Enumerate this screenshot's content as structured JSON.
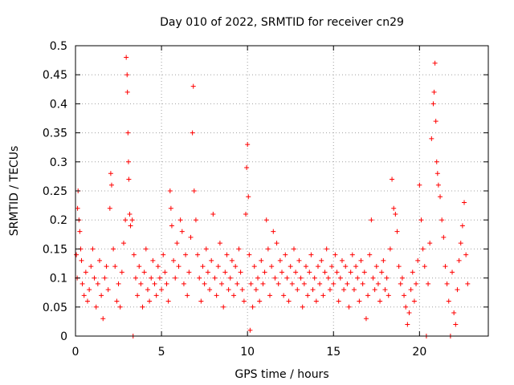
{
  "chart_data": {
    "type": "scatter",
    "title": "Day 010 of 2022, SRMTID for receiver cn29",
    "xlabel": "GPS time / hours",
    "ylabel": "SRMTID / TECUs",
    "xlim": [
      0,
      24
    ],
    "ylim": [
      0,
      0.5
    ],
    "xticks": [
      0,
      5,
      10,
      15,
      20
    ],
    "xtick_labels": [
      "0",
      "5",
      "10",
      "15",
      "20"
    ],
    "yticks": [
      0,
      0.05,
      0.1,
      0.15,
      0.2,
      0.25,
      0.3,
      0.35,
      0.4,
      0.45,
      0.5
    ],
    "ytick_labels": [
      "0",
      "0.05",
      "0.1",
      "0.15",
      "0.2",
      "0.25",
      "0.3",
      "0.35",
      "0.4",
      "0.45",
      "0.5"
    ],
    "grid": true,
    "marker": "plus",
    "series": [
      {
        "name": "SRMTID",
        "color": "#ff0000",
        "points": [
          [
            0.05,
            0.14
          ],
          [
            0.1,
            0.1
          ],
          [
            0.12,
            0.22
          ],
          [
            0.15,
            0.25
          ],
          [
            0.2,
            0.2
          ],
          [
            0.25,
            0.18
          ],
          [
            0.3,
            0.15
          ],
          [
            0.35,
            0.13
          ],
          [
            0.4,
            0.09
          ],
          [
            0.5,
            0.07
          ],
          [
            0.6,
            0.11
          ],
          [
            0.7,
            0.06
          ],
          [
            0.8,
            0.08
          ],
          [
            0.9,
            0.12
          ],
          [
            1.0,
            0.15
          ],
          [
            1.1,
            0.1
          ],
          [
            1.2,
            0.05
          ],
          [
            1.3,
            0.09
          ],
          [
            1.4,
            0.13
          ],
          [
            1.5,
            0.07
          ],
          [
            1.6,
            0.03
          ],
          [
            1.7,
            0.1
          ],
          [
            1.8,
            0.12
          ],
          [
            1.9,
            0.08
          ],
          [
            2.0,
            0.22
          ],
          [
            2.05,
            0.28
          ],
          [
            2.1,
            0.26
          ],
          [
            2.2,
            0.15
          ],
          [
            2.3,
            0.12
          ],
          [
            2.4,
            0.06
          ],
          [
            2.5,
            0.09
          ],
          [
            2.6,
            0.05
          ],
          [
            2.7,
            0.11
          ],
          [
            2.8,
            0.16
          ],
          [
            2.9,
            0.2
          ],
          [
            2.95,
            0.48
          ],
          [
            3.0,
            0.45
          ],
          [
            3.02,
            0.42
          ],
          [
            3.05,
            0.35
          ],
          [
            3.08,
            0.3
          ],
          [
            3.1,
            0.27
          ],
          [
            3.15,
            0.21
          ],
          [
            3.2,
            0.19
          ],
          [
            3.3,
            0.2
          ],
          [
            3.35,
            0.0
          ],
          [
            3.4,
            0.14
          ],
          [
            3.5,
            0.1
          ],
          [
            3.6,
            0.07
          ],
          [
            3.7,
            0.12
          ],
          [
            3.8,
            0.09
          ],
          [
            3.9,
            0.05
          ],
          [
            4.0,
            0.11
          ],
          [
            4.1,
            0.15
          ],
          [
            4.2,
            0.08
          ],
          [
            4.3,
            0.06
          ],
          [
            4.4,
            0.1
          ],
          [
            4.5,
            0.13
          ],
          [
            4.6,
            0.09
          ],
          [
            4.7,
            0.07
          ],
          [
            4.8,
            0.12
          ],
          [
            4.9,
            0.1
          ],
          [
            5.0,
            0.08
          ],
          [
            5.1,
            0.14
          ],
          [
            5.2,
            0.11
          ],
          [
            5.3,
            0.09
          ],
          [
            5.4,
            0.06
          ],
          [
            5.5,
            0.25
          ],
          [
            5.55,
            0.22
          ],
          [
            5.6,
            0.19
          ],
          [
            5.7,
            0.13
          ],
          [
            5.8,
            0.1
          ],
          [
            5.9,
            0.16
          ],
          [
            6.0,
            0.12
          ],
          [
            6.1,
            0.2
          ],
          [
            6.2,
            0.18
          ],
          [
            6.3,
            0.09
          ],
          [
            6.4,
            0.14
          ],
          [
            6.5,
            0.07
          ],
          [
            6.6,
            0.11
          ],
          [
            6.7,
            0.17
          ],
          [
            6.8,
            0.35
          ],
          [
            6.85,
            0.43
          ],
          [
            6.9,
            0.25
          ],
          [
            7.0,
            0.2
          ],
          [
            7.1,
            0.14
          ],
          [
            7.2,
            0.1
          ],
          [
            7.3,
            0.06
          ],
          [
            7.4,
            0.12
          ],
          [
            7.5,
            0.09
          ],
          [
            7.6,
            0.15
          ],
          [
            7.7,
            0.11
          ],
          [
            7.8,
            0.08
          ],
          [
            7.9,
            0.13
          ],
          [
            8.0,
            0.21
          ],
          [
            8.1,
            0.1
          ],
          [
            8.2,
            0.07
          ],
          [
            8.3,
            0.12
          ],
          [
            8.4,
            0.16
          ],
          [
            8.5,
            0.09
          ],
          [
            8.6,
            0.05
          ],
          [
            8.7,
            0.11
          ],
          [
            8.8,
            0.14
          ],
          [
            8.9,
            0.08
          ],
          [
            9.0,
            0.1
          ],
          [
            9.1,
            0.13
          ],
          [
            9.2,
            0.07
          ],
          [
            9.3,
            0.12
          ],
          [
            9.4,
            0.09
          ],
          [
            9.5,
            0.15
          ],
          [
            9.6,
            0.11
          ],
          [
            9.7,
            0.08
          ],
          [
            9.8,
            0.06
          ],
          [
            9.9,
            0.21
          ],
          [
            9.95,
            0.29
          ],
          [
            10.0,
            0.33
          ],
          [
            10.05,
            0.24
          ],
          [
            10.1,
            0.14
          ],
          [
            10.15,
            0.01
          ],
          [
            10.2,
            0.09
          ],
          [
            10.3,
            0.05
          ],
          [
            10.4,
            0.12
          ],
          [
            10.5,
            0.08
          ],
          [
            10.6,
            0.1
          ],
          [
            10.7,
            0.06
          ],
          [
            10.8,
            0.13
          ],
          [
            10.9,
            0.09
          ],
          [
            11.0,
            0.11
          ],
          [
            11.1,
            0.2
          ],
          [
            11.2,
            0.15
          ],
          [
            11.3,
            0.07
          ],
          [
            11.4,
            0.12
          ],
          [
            11.5,
            0.18
          ],
          [
            11.6,
            0.1
          ],
          [
            11.7,
            0.16
          ],
          [
            11.8,
            0.09
          ],
          [
            11.9,
            0.13
          ],
          [
            12.0,
            0.11
          ],
          [
            12.1,
            0.07
          ],
          [
            12.2,
            0.14
          ],
          [
            12.3,
            0.1
          ],
          [
            12.4,
            0.06
          ],
          [
            12.5,
            0.12
          ],
          [
            12.6,
            0.09
          ],
          [
            12.7,
            0.15
          ],
          [
            12.8,
            0.11
          ],
          [
            12.9,
            0.08
          ],
          [
            13.0,
            0.13
          ],
          [
            13.1,
            0.1
          ],
          [
            13.2,
            0.05
          ],
          [
            13.3,
            0.09
          ],
          [
            13.4,
            0.12
          ],
          [
            13.5,
            0.07
          ],
          [
            13.6,
            0.11
          ],
          [
            13.7,
            0.14
          ],
          [
            13.8,
            0.08
          ],
          [
            13.9,
            0.1
          ],
          [
            14.0,
            0.06
          ],
          [
            14.1,
            0.12
          ],
          [
            14.2,
            0.09
          ],
          [
            14.3,
            0.13
          ],
          [
            14.4,
            0.07
          ],
          [
            14.5,
            0.11
          ],
          [
            14.6,
            0.15
          ],
          [
            14.7,
            0.1
          ],
          [
            14.8,
            0.08
          ],
          [
            14.9,
            0.12
          ],
          [
            15.0,
            0.09
          ],
          [
            15.1,
            0.14
          ],
          [
            15.2,
            0.11
          ],
          [
            15.3,
            0.06
          ],
          [
            15.4,
            0.1
          ],
          [
            15.5,
            0.13
          ],
          [
            15.6,
            0.08
          ],
          [
            15.7,
            0.12
          ],
          [
            15.8,
            0.09
          ],
          [
            15.9,
            0.05
          ],
          [
            16.0,
            0.11
          ],
          [
            16.1,
            0.14
          ],
          [
            16.2,
            0.08
          ],
          [
            16.3,
            0.12
          ],
          [
            16.4,
            0.1
          ],
          [
            16.5,
            0.06
          ],
          [
            16.6,
            0.13
          ],
          [
            16.7,
            0.09
          ],
          [
            16.8,
            0.11
          ],
          [
            16.9,
            0.03
          ],
          [
            17.0,
            0.07
          ],
          [
            17.1,
            0.14
          ],
          [
            17.2,
            0.2
          ],
          [
            17.3,
            0.1
          ],
          [
            17.4,
            0.08
          ],
          [
            17.5,
            0.12
          ],
          [
            17.6,
            0.09
          ],
          [
            17.7,
            0.06
          ],
          [
            17.8,
            0.11
          ],
          [
            17.9,
            0.13
          ],
          [
            18.0,
            0.08
          ],
          [
            18.1,
            0.1
          ],
          [
            18.2,
            0.07
          ],
          [
            18.3,
            0.15
          ],
          [
            18.4,
            0.27
          ],
          [
            18.5,
            0.22
          ],
          [
            18.6,
            0.21
          ],
          [
            18.7,
            0.18
          ],
          [
            18.8,
            0.12
          ],
          [
            18.9,
            0.09
          ],
          [
            19.0,
            0.1
          ],
          [
            19.1,
            0.07
          ],
          [
            19.2,
            0.05
          ],
          [
            19.3,
            0.02
          ],
          [
            19.4,
            0.04
          ],
          [
            19.5,
            0.08
          ],
          [
            19.6,
            0.11
          ],
          [
            19.7,
            0.06
          ],
          [
            19.8,
            0.09
          ],
          [
            19.9,
            0.13
          ],
          [
            20.0,
            0.26
          ],
          [
            20.1,
            0.2
          ],
          [
            20.2,
            0.15
          ],
          [
            20.3,
            0.12
          ],
          [
            20.4,
            0.0
          ],
          [
            20.5,
            0.09
          ],
          [
            20.6,
            0.16
          ],
          [
            20.7,
            0.34
          ],
          [
            20.8,
            0.4
          ],
          [
            20.85,
            0.42
          ],
          [
            20.9,
            0.47
          ],
          [
            20.95,
            0.37
          ],
          [
            21.0,
            0.3
          ],
          [
            21.05,
            0.28
          ],
          [
            21.1,
            0.26
          ],
          [
            21.2,
            0.24
          ],
          [
            21.3,
            0.2
          ],
          [
            21.4,
            0.17
          ],
          [
            21.5,
            0.12
          ],
          [
            21.6,
            0.09
          ],
          [
            21.7,
            0.06
          ],
          [
            21.8,
            0.0
          ],
          [
            21.9,
            0.11
          ],
          [
            22.0,
            0.04
          ],
          [
            22.1,
            0.02
          ],
          [
            22.2,
            0.08
          ],
          [
            22.3,
            0.13
          ],
          [
            22.4,
            0.16
          ],
          [
            22.5,
            0.19
          ],
          [
            22.6,
            0.23
          ],
          [
            22.7,
            0.14
          ],
          [
            22.8,
            0.09
          ]
        ]
      }
    ]
  }
}
